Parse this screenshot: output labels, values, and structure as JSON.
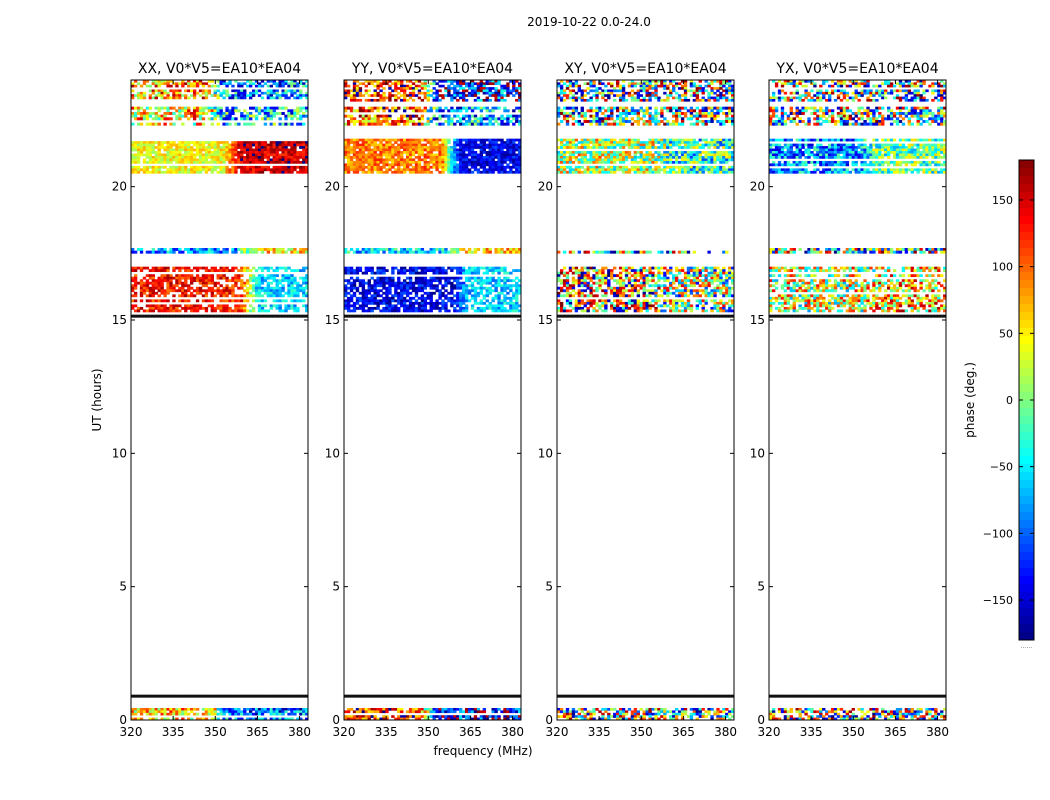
{
  "suptitle": "2019-10-22 0.0-24.0",
  "xlabel": "frequency (MHz)",
  "ylabel": "UT (hours)",
  "chart_data": {
    "type": "heatmap",
    "x_ticks": [
      320,
      335,
      350,
      365,
      380
    ],
    "xlim": [
      320,
      383
    ],
    "y_ticks": [
      0,
      5,
      10,
      15,
      20
    ],
    "ylim": [
      0,
      24
    ],
    "colormap": "jet",
    "colorbar": {
      "label": "phase (deg.)",
      "ticks": [
        150,
        100,
        50,
        0,
        -50,
        -100,
        -150
      ],
      "tick_labels": [
        "150",
        "100",
        "50",
        "0",
        "−50",
        "−100",
        "−150"
      ],
      "range": [
        -180,
        180
      ],
      "extra_label": "......"
    },
    "panels": [
      {
        "title": "XX, V0*V5=EA10*EA04",
        "bands": [
          {
            "ut_range": [
              0.0,
              0.45
            ],
            "freq_split": 352,
            "phase_low": 60,
            "phase_high": -100,
            "noise": 80,
            "sparse": 0.15
          },
          {
            "ut_range": [
              0.85,
              0.95
            ],
            "phase_low": 0,
            "phase_high": 0,
            "noise": 180,
            "line": true
          },
          {
            "ut_range": [
              15.1,
              15.2
            ],
            "phase_low": 0,
            "phase_high": 0,
            "noise": 180,
            "line": true
          },
          {
            "ut_range": [
              15.3,
              17.0
            ],
            "freq_split": 362,
            "phase_low": 130,
            "phase_high": -60,
            "noise": 40,
            "sparse": 0.25
          },
          {
            "ut_range": [
              17.5,
              17.7
            ],
            "freq_split": 360,
            "phase_low": -80,
            "phase_high": 50,
            "noise": 60,
            "sparse": 0.2
          },
          {
            "ut_range": [
              20.5,
              21.8
            ],
            "freq_split": 356,
            "phase_low": 40,
            "phase_high": 150,
            "noise": 35,
            "sparse": 0.1
          },
          {
            "ut_range": [
              22.3,
              23.0
            ],
            "freq_split": 350,
            "phase_low": 60,
            "phase_high": -60,
            "noise": 100,
            "sparse": 0.3
          },
          {
            "ut_range": [
              23.2,
              24.0
            ],
            "freq_split": 350,
            "phase_low": 80,
            "phase_high": -80,
            "noise": 90,
            "sparse": 0.35
          }
        ]
      },
      {
        "title": "YY, V0*V5=EA10*EA04",
        "bands": [
          {
            "ut_range": [
              0.0,
              0.45
            ],
            "freq_split": 350,
            "phase_low": 120,
            "phase_high": -130,
            "noise": 80,
            "sparse": 0.15
          },
          {
            "ut_range": [
              0.85,
              0.95
            ],
            "phase_low": 0,
            "phase_high": 0,
            "noise": 180,
            "line": true
          },
          {
            "ut_range": [
              15.1,
              15.2
            ],
            "phase_low": 0,
            "phase_high": 0,
            "noise": 180,
            "line": true
          },
          {
            "ut_range": [
              15.3,
              17.0
            ],
            "freq_split": 362,
            "phase_low": -140,
            "phase_high": -60,
            "noise": 40,
            "sparse": 0.25
          },
          {
            "ut_range": [
              17.5,
              17.7
            ],
            "freq_split": 360,
            "phase_low": -60,
            "phase_high": 60,
            "noise": 60,
            "sparse": 0.2
          },
          {
            "ut_range": [
              20.5,
              21.8
            ],
            "freq_split": 358,
            "phase_low": 90,
            "phase_high": -140,
            "noise": 35,
            "sparse": 0.1
          },
          {
            "ut_range": [
              22.3,
              23.0
            ],
            "freq_split": 350,
            "phase_low": 100,
            "phase_high": -80,
            "noise": 100,
            "sparse": 0.3
          },
          {
            "ut_range": [
              23.2,
              24.0
            ],
            "freq_split": 350,
            "phase_low": 120,
            "phase_high": -120,
            "noise": 90,
            "sparse": 0.35
          }
        ]
      },
      {
        "title": "XY, V0*V5=EA10*EA04",
        "bands": [
          {
            "ut_range": [
              0.0,
              0.45
            ],
            "phase_low": 0,
            "phase_high": 0,
            "noise": 180,
            "sparse": 0.3
          },
          {
            "ut_range": [
              0.85,
              0.95
            ],
            "phase_low": 0,
            "phase_high": 0,
            "noise": 180,
            "line": true
          },
          {
            "ut_range": [
              15.1,
              15.2
            ],
            "phase_low": 0,
            "phase_high": 0,
            "noise": 180,
            "line": true
          },
          {
            "ut_range": [
              15.3,
              17.0
            ],
            "freq_split": 355,
            "phase_low": 100,
            "phase_high": 0,
            "noise": 140,
            "sparse": 0.3
          },
          {
            "ut_range": [
              17.5,
              17.7
            ],
            "phase_low": 0,
            "phase_high": 0,
            "noise": 180,
            "sparse": 0.3
          },
          {
            "ut_range": [
              20.5,
              21.8
            ],
            "freq_split": 358,
            "phase_low": 20,
            "phase_high": -30,
            "noise": 90,
            "sparse": 0.1
          },
          {
            "ut_range": [
              22.3,
              23.0
            ],
            "phase_low": 0,
            "phase_high": 0,
            "noise": 180,
            "sparse": 0.35
          },
          {
            "ut_range": [
              23.2,
              24.0
            ],
            "phase_low": 0,
            "phase_high": 0,
            "noise": 180,
            "sparse": 0.4
          }
        ]
      },
      {
        "title": "YX, V0*V5=EA10*EA04",
        "bands": [
          {
            "ut_range": [
              0.0,
              0.45
            ],
            "phase_low": 0,
            "phase_high": 0,
            "noise": 180,
            "sparse": 0.3
          },
          {
            "ut_range": [
              0.85,
              0.95
            ],
            "phase_low": 0,
            "phase_high": 0,
            "noise": 180,
            "line": true
          },
          {
            "ut_range": [
              15.1,
              15.2
            ],
            "phase_low": 0,
            "phase_high": 0,
            "noise": 180,
            "line": true
          },
          {
            "ut_range": [
              15.3,
              17.0
            ],
            "freq_split": 358,
            "phase_low": 30,
            "phase_high": 60,
            "noise": 110,
            "sparse": 0.3
          },
          {
            "ut_range": [
              17.5,
              17.7
            ],
            "phase_low": 0,
            "phase_high": 0,
            "noise": 180,
            "sparse": 0.3
          },
          {
            "ut_range": [
              20.5,
              21.8
            ],
            "freq_split": 355,
            "phase_low": -80,
            "phase_high": -10,
            "noise": 70,
            "sparse": 0.1
          },
          {
            "ut_range": [
              22.3,
              23.0
            ],
            "phase_low": 0,
            "phase_high": 0,
            "noise": 180,
            "sparse": 0.35
          },
          {
            "ut_range": [
              23.2,
              24.0
            ],
            "phase_low": 0,
            "phase_high": 0,
            "noise": 180,
            "sparse": 0.4
          }
        ]
      }
    ]
  }
}
